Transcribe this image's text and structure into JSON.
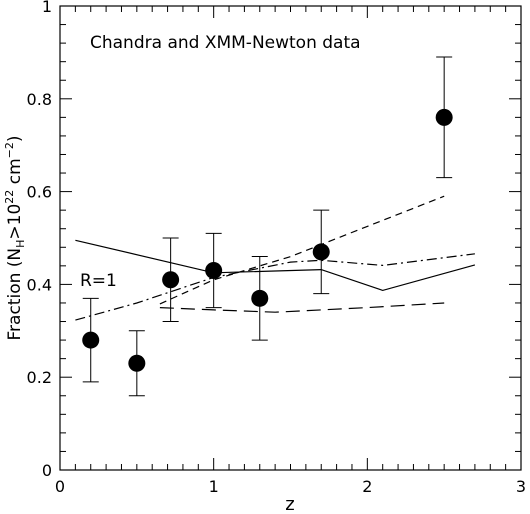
{
  "chart_data": {
    "type": "scatter",
    "title": "",
    "annotation": "Chandra and XMM-Newton data",
    "xlabel": "z",
    "ylabel": "Fraction (N_H>10^22 cm^-2)",
    "ylabel_parts": {
      "pre": "Fraction (N",
      "sub": "H",
      "mid": ">10",
      "sup1": "22",
      "unit": " cm",
      "sup2": "−2",
      "post": ")"
    },
    "xlim": [
      0,
      3
    ],
    "ylim": [
      0,
      1
    ],
    "xticks": [
      0,
      1,
      2,
      3
    ],
    "yticks": [
      0,
      0.2,
      0.4,
      0.6,
      0.8,
      1
    ],
    "xtick_labels": [
      "0",
      "1",
      "2",
      "3"
    ],
    "ytick_labels": [
      "0",
      "0.2",
      "0.4",
      "0.6",
      "0.8",
      "1"
    ],
    "points": [
      {
        "x": 0.2,
        "y": 0.28,
        "ylo": 0.19,
        "yhi": 0.37
      },
      {
        "x": 0.5,
        "y": 0.23,
        "ylo": 0.16,
        "yhi": 0.3
      },
      {
        "x": 0.72,
        "y": 0.41,
        "ylo": 0.32,
        "yhi": 0.5
      },
      {
        "x": 1.0,
        "y": 0.43,
        "ylo": 0.35,
        "yhi": 0.51
      },
      {
        "x": 1.3,
        "y": 0.37,
        "ylo": 0.28,
        "yhi": 0.46
      },
      {
        "x": 1.7,
        "y": 0.47,
        "ylo": 0.38,
        "yhi": 0.56
      },
      {
        "x": 2.5,
        "y": 0.76,
        "ylo": 0.63,
        "yhi": 0.89
      }
    ],
    "curve_label": "R=1",
    "curves": [
      {
        "style": "solid",
        "x": [
          0.1,
          1.0,
          1.7,
          2.1,
          2.7
        ],
        "y": [
          0.495,
          0.425,
          0.432,
          0.387,
          0.442
        ]
      },
      {
        "style": "dashdot",
        "x": [
          0.1,
          0.5,
          1.0,
          1.5,
          1.7,
          2.1,
          2.7
        ],
        "y": [
          0.323,
          0.36,
          0.415,
          0.448,
          0.452,
          0.441,
          0.466
        ]
      },
      {
        "style": "dashed",
        "x": [
          0.65,
          1.0,
          1.5,
          2.0,
          2.5
        ],
        "y": [
          0.358,
          0.41,
          0.46,
          0.525,
          0.59
        ]
      },
      {
        "style": "longdash",
        "x": [
          0.65,
          1.0,
          1.4,
          2.0,
          2.5
        ],
        "y": [
          0.35,
          0.345,
          0.34,
          0.35,
          0.36
        ]
      }
    ]
  }
}
